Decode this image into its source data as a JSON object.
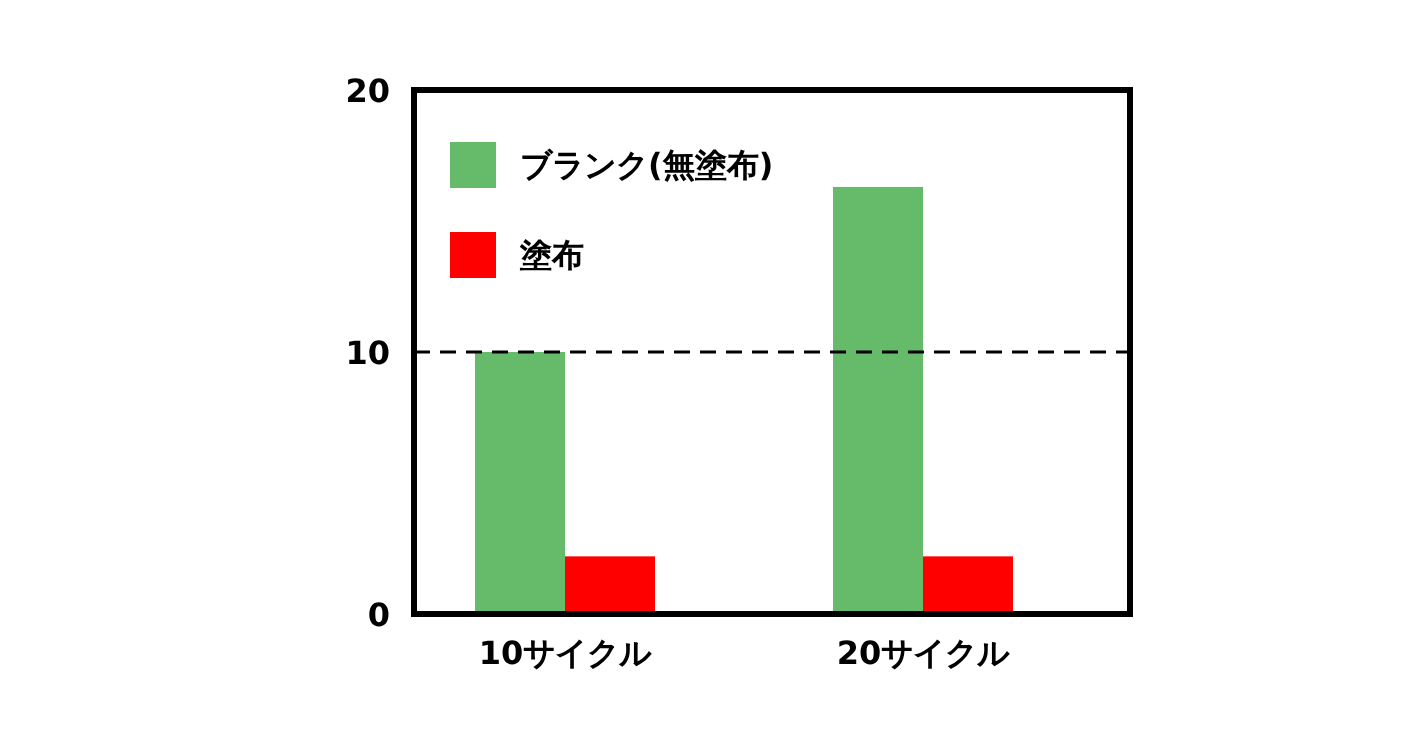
{
  "chart_data": {
    "type": "bar",
    "categories": [
      "10サイクル",
      "20サイクル"
    ],
    "series": [
      {
        "name": "ブランク(無塗布)",
        "color": "#66bb6a",
        "values": [
          10,
          16.3
        ]
      },
      {
        "name": "塗布",
        "color": "#ff0000",
        "values": [
          2.2,
          2.2
        ]
      }
    ],
    "ylim": [
      0,
      20
    ],
    "yticks": [
      0,
      10,
      20
    ],
    "grid": false,
    "legend": "top left",
    "ref_lines": [
      {
        "axis": "y",
        "value": 10,
        "color": "#000000",
        "line_style": "dashed"
      }
    ]
  }
}
